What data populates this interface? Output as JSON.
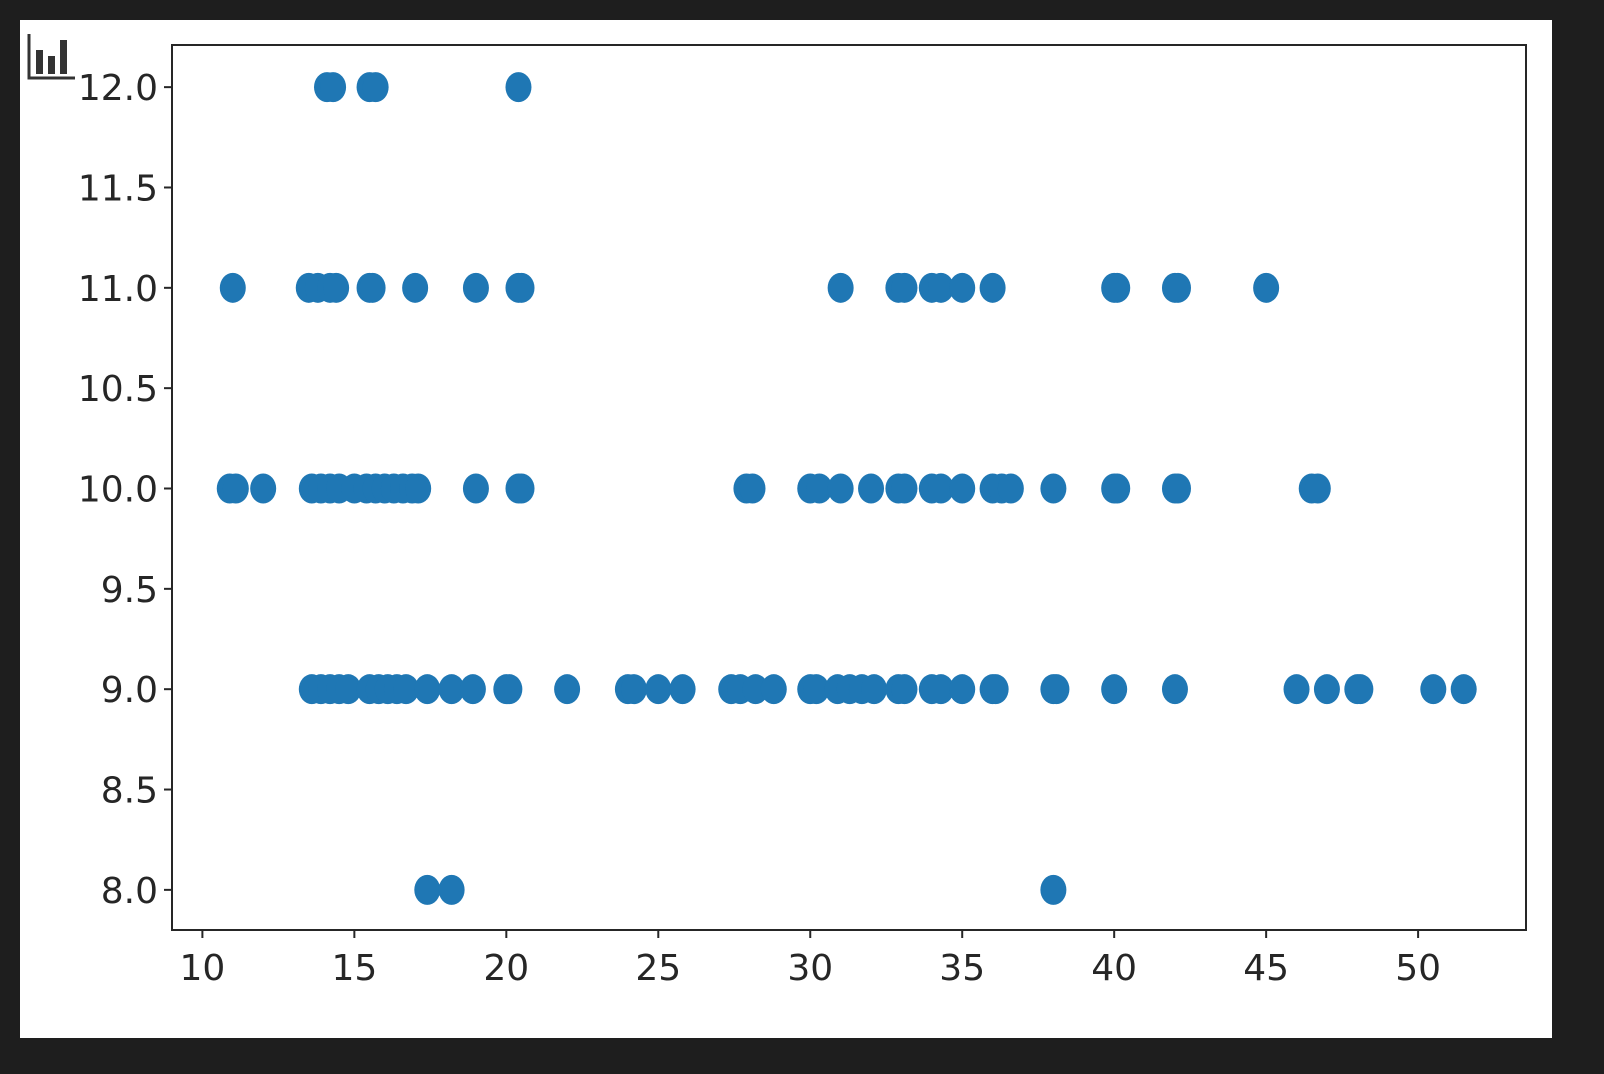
{
  "chart_data": {
    "type": "scatter",
    "title": "",
    "xlabel": "",
    "ylabel": "",
    "xlim": [
      9.0,
      53.55
    ],
    "ylim": [
      7.8,
      12.21
    ],
    "xticks": [
      "10",
      "15",
      "20",
      "25",
      "30",
      "35",
      "40",
      "45",
      "50"
    ],
    "yticks": [
      "8.0",
      "8.5",
      "9.0",
      "9.5",
      "10.0",
      "10.5",
      "11.0",
      "11.5",
      "12.0"
    ],
    "grid": false,
    "color": "#1f77b4",
    "points": [
      [
        14.1,
        12
      ],
      [
        14.3,
        12
      ],
      [
        15.5,
        12
      ],
      [
        15.7,
        12
      ],
      [
        20.4,
        12
      ],
      [
        11,
        11
      ],
      [
        13.5,
        11
      ],
      [
        13.8,
        11
      ],
      [
        14.2,
        11
      ],
      [
        14.4,
        11
      ],
      [
        15.5,
        11
      ],
      [
        15.6,
        11
      ],
      [
        17,
        11
      ],
      [
        19,
        11
      ],
      [
        20.4,
        11
      ],
      [
        20.5,
        11
      ],
      [
        31,
        11
      ],
      [
        32.9,
        11
      ],
      [
        33.1,
        11
      ],
      [
        34,
        11
      ],
      [
        34.3,
        11
      ],
      [
        35,
        11
      ],
      [
        36,
        11
      ],
      [
        40,
        11
      ],
      [
        40.1,
        11
      ],
      [
        42,
        11
      ],
      [
        42.1,
        11
      ],
      [
        45,
        11
      ],
      [
        10.9,
        10
      ],
      [
        11.1,
        10
      ],
      [
        12,
        10
      ],
      [
        13.6,
        10
      ],
      [
        13.9,
        10
      ],
      [
        14.2,
        10
      ],
      [
        14.5,
        10
      ],
      [
        15,
        10
      ],
      [
        15.4,
        10
      ],
      [
        15.7,
        10
      ],
      [
        16,
        10
      ],
      [
        16.3,
        10
      ],
      [
        16.6,
        10
      ],
      [
        16.9,
        10
      ],
      [
        17.1,
        10
      ],
      [
        19,
        10
      ],
      [
        20.4,
        10
      ],
      [
        20.5,
        10
      ],
      [
        27.9,
        10
      ],
      [
        28.1,
        10
      ],
      [
        30,
        10
      ],
      [
        30.3,
        10
      ],
      [
        31,
        10
      ],
      [
        32,
        10
      ],
      [
        32.9,
        10
      ],
      [
        33.1,
        10
      ],
      [
        34,
        10
      ],
      [
        34.3,
        10
      ],
      [
        35,
        10
      ],
      [
        36,
        10
      ],
      [
        36.3,
        10
      ],
      [
        36.6,
        10
      ],
      [
        38,
        10
      ],
      [
        40,
        10
      ],
      [
        40.1,
        10
      ],
      [
        42,
        10
      ],
      [
        42.1,
        10
      ],
      [
        46.5,
        10
      ],
      [
        46.7,
        10
      ],
      [
        13.6,
        9
      ],
      [
        13.9,
        9
      ],
      [
        14.2,
        9
      ],
      [
        14.5,
        9
      ],
      [
        14.8,
        9
      ],
      [
        15.5,
        9
      ],
      [
        15.8,
        9
      ],
      [
        16.1,
        9
      ],
      [
        16.4,
        9
      ],
      [
        16.7,
        9
      ],
      [
        17.4,
        9
      ],
      [
        18.2,
        9
      ],
      [
        18.9,
        9
      ],
      [
        20,
        9
      ],
      [
        20.1,
        9
      ],
      [
        22,
        9
      ],
      [
        24,
        9
      ],
      [
        24.2,
        9
      ],
      [
        25,
        9
      ],
      [
        25.8,
        9
      ],
      [
        27.4,
        9
      ],
      [
        27.7,
        9
      ],
      [
        28.2,
        9
      ],
      [
        28.8,
        9
      ],
      [
        30,
        9
      ],
      [
        30.2,
        9
      ],
      [
        30.9,
        9
      ],
      [
        31.3,
        9
      ],
      [
        31.7,
        9
      ],
      [
        32.1,
        9
      ],
      [
        32.9,
        9
      ],
      [
        33.1,
        9
      ],
      [
        34,
        9
      ],
      [
        34.3,
        9
      ],
      [
        35,
        9
      ],
      [
        36,
        9
      ],
      [
        36.1,
        9
      ],
      [
        38,
        9
      ],
      [
        38.1,
        9
      ],
      [
        40,
        9
      ],
      [
        42,
        9
      ],
      [
        46,
        9
      ],
      [
        47,
        9
      ],
      [
        48,
        9
      ],
      [
        48.1,
        9
      ],
      [
        50.5,
        9
      ],
      [
        51.5,
        9
      ],
      [
        17.4,
        8
      ],
      [
        18.2,
        8
      ],
      [
        38,
        8
      ]
    ]
  },
  "toolbar": {
    "icon": "bar-chart-icon"
  }
}
